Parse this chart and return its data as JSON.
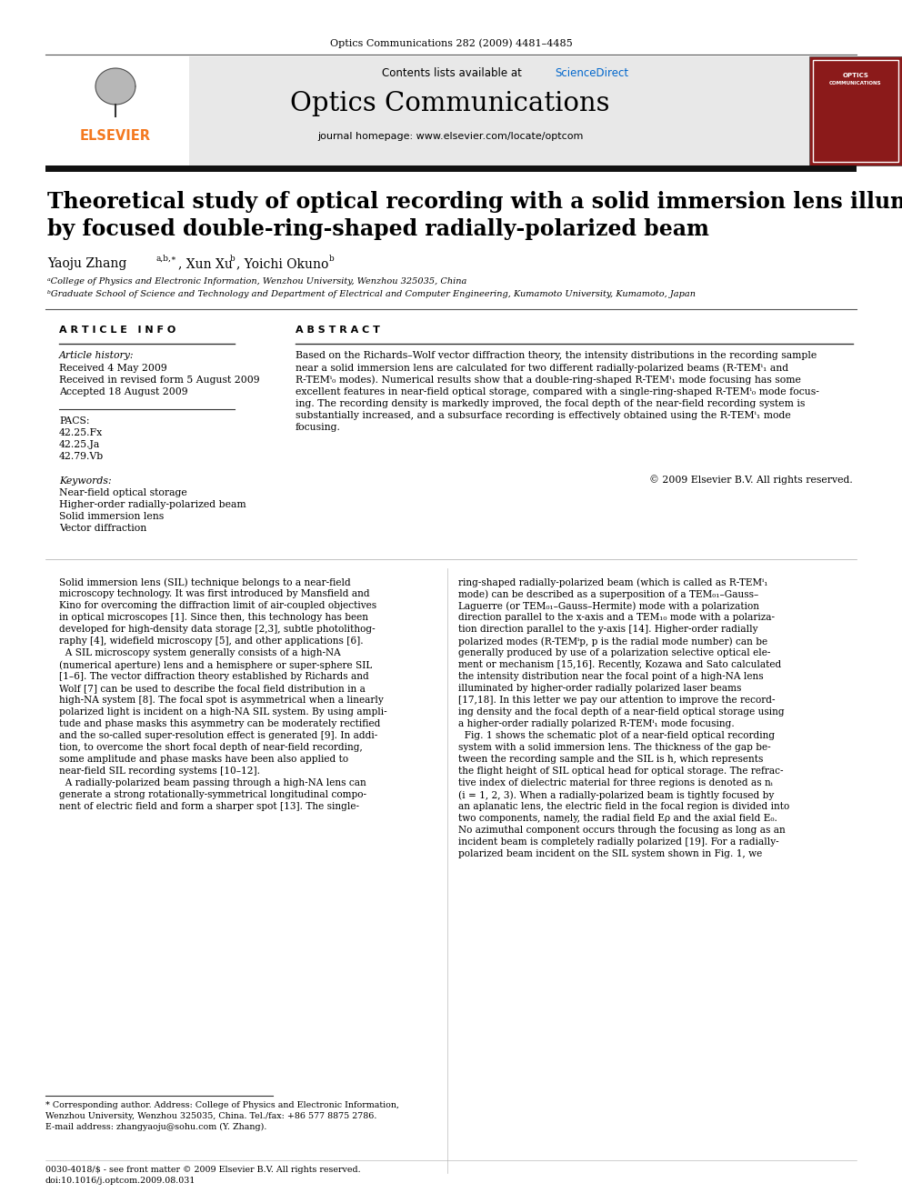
{
  "journal_citation": "Optics Communications 282 (2009) 4481–4485",
  "contents_line": "Contents lists available at ScienceDirect",
  "journal_name": "Optics Communications",
  "journal_homepage": "journal homepage: www.elsevier.com/locate/optcom",
  "title_line1": "Theoretical study of optical recording with a solid immersion lens illuminated",
  "title_line2": "by focused double-ring-shaped radially-polarized beam",
  "affil_a": "ᵃCollege of Physics and Electronic Information, Wenzhou University, Wenzhou 325035, China",
  "affil_b": "ᵇGraduate School of Science and Technology and Department of Electrical and Computer Engineering, Kumamoto University, Kumamoto, Japan",
  "article_info_header": "A R T I C L E   I N F O",
  "abstract_header": "A B S T R A C T",
  "article_history_label": "Article history:",
  "received": "Received 4 May 2009",
  "received_revised": "Received in revised form 5 August 2009",
  "accepted": "Accepted 18 August 2009",
  "pacs_label": "PACS:",
  "pacs1": "42.25.Fx",
  "pacs2": "42.25.Ja",
  "pacs3": "42.79.Vb",
  "keywords_label": "Keywords:",
  "kw1": "Near-field optical storage",
  "kw2": "Higher-order radially-polarized beam",
  "kw3": "Solid immersion lens",
  "kw4": "Vector diffraction",
  "copyright": "© 2009 Elsevier B.V. All rights reserved.",
  "footnote1": "* Corresponding author. Address: College of Physics and Electronic Information,",
  "footnote2": "Wenzhou University, Wenzhou 325035, China. Tel./fax: +86 577 8875 2786.",
  "footnote3": "E-mail address: zhangyaoju@sohu.com (Y. Zhang).",
  "footer1": "0030-4018/$ - see front matter © 2009 Elsevier B.V. All rights reserved.",
  "footer2": "doi:10.1016/j.optcom.2009.08.031",
  "bg_color": "#ffffff",
  "text_color": "#000000",
  "elsevier_orange": "#f47920",
  "sciencedirect_blue": "#0066cc",
  "journal_bg": "#e8e8e8",
  "cover_bg": "#8b1a1a",
  "abstract_lines": [
    "Based on the Richards–Wolf vector diffraction theory, the intensity distributions in the recording sample",
    "near a solid immersion lens are calculated for two different radially-polarized beams (R-TEMⁱ₁ and",
    "R-TEMⁱ₀ modes). Numerical results show that a double-ring-shaped R-TEMⁱ₁ mode focusing has some",
    "excellent features in near-field optical storage, compared with a single-ring-shaped R-TEMⁱ₀ mode focus-",
    "ing. The recording density is markedly improved, the focal depth of the near-field recording system is",
    "substantially increased, and a subsurface recording is effectively obtained using the R-TEMⁱ₁ mode",
    "focusing."
  ],
  "col1_lines": [
    "Solid immersion lens (SIL) technique belongs to a near-field",
    "microscopy technology. It was first introduced by Mansfield and",
    "Kino for overcoming the diffraction limit of air-coupled objectives",
    "in optical microscopes [1]. Since then, this technology has been",
    "developed for high-density data storage [2,3], subtle photolithog-",
    "raphy [4], widefield microscopy [5], and other applications [6].",
    "  A SIL microscopy system generally consists of a high-NA",
    "(numerical aperture) lens and a hemisphere or super-sphere SIL",
    "[1–6]. The vector diffraction theory established by Richards and",
    "Wolf [7] can be used to describe the focal field distribution in a",
    "high-NA system [8]. The focal spot is asymmetrical when a linearly",
    "polarized light is incident on a high-NA SIL system. By using ampli-",
    "tude and phase masks this asymmetry can be moderately rectified",
    "and the so-called super-resolution effect is generated [9]. In addi-",
    "tion, to overcome the short focal depth of near-field recording,",
    "some amplitude and phase masks have been also applied to",
    "near-field SIL recording systems [10–12].",
    "  A radially-polarized beam passing through a high-NA lens can",
    "generate a strong rotationally-symmetrical longitudinal compo-",
    "nent of electric field and form a sharper spot [13]. The single-"
  ],
  "col2_lines": [
    "ring-shaped radially-polarized beam (which is called as R-TEMⁱ₁",
    "mode) can be described as a superposition of a TEM₀₁–Gauss–",
    "Laguerre (or TEM₀₁–Gauss–Hermite) mode with a polarization",
    "direction parallel to the x-axis and a TEM₁₀ mode with a polariza-",
    "tion direction parallel to the y-axis [14]. Higher-order radially",
    "polarized modes (R-TEMⁱp, p is the radial mode number) can be",
    "generally produced by use of a polarization selective optical ele-",
    "ment or mechanism [15,16]. Recently, Kozawa and Sato calculated",
    "the intensity distribution near the focal point of a high-NA lens",
    "illuminated by higher-order radially polarized laser beams",
    "[17,18]. In this letter we pay our attention to improve the record-",
    "ing density and the focal depth of a near-field optical storage using",
    "a higher-order radially polarized R-TEMⁱ₁ mode focusing.",
    "  Fig. 1 shows the schematic plot of a near-field optical recording",
    "system with a solid immersion lens. The thickness of the gap be-",
    "tween the recording sample and the SIL is h, which represents",
    "the flight height of SIL optical head for optical storage. The refrac-",
    "tive index of dielectric material for three regions is denoted as nᵢ",
    "(i = 1, 2, 3). When a radially-polarized beam is tightly focused by",
    "an aplanatic lens, the electric field in the focal region is divided into",
    "two components, namely, the radial field Eρ and the axial field E₀.",
    "No azimuthal component occurs through the focusing as long as an",
    "incident beam is completely radially polarized [19]. For a radially-",
    "polarized beam incident on the SIL system shown in Fig. 1, we"
  ]
}
